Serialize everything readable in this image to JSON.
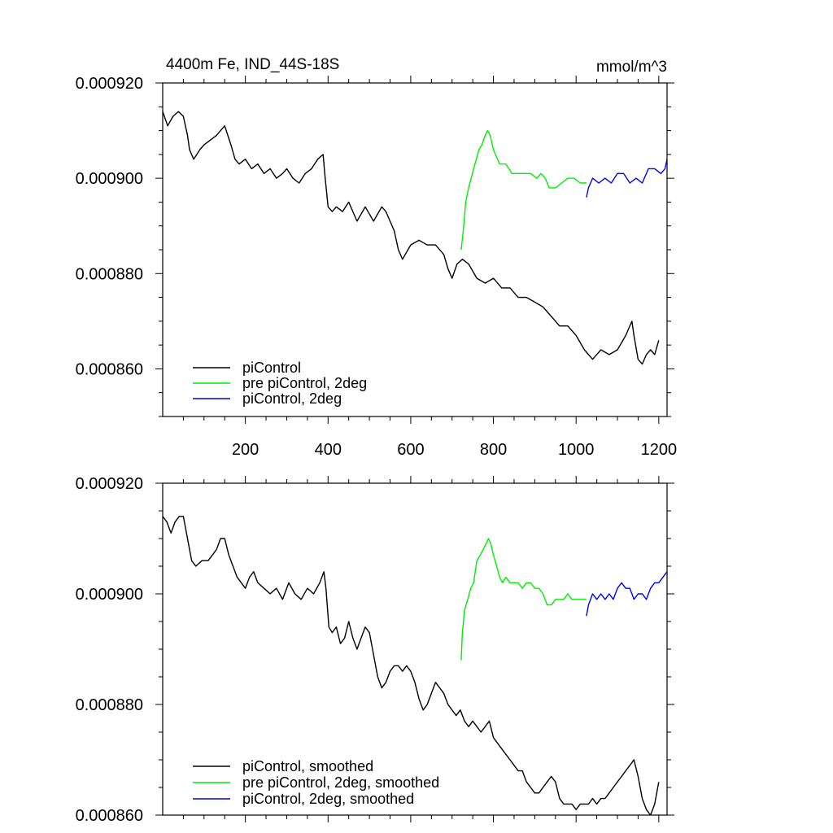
{
  "chart_data": [
    {
      "type": "line",
      "title": "4400m Fe, IND_44S-18S",
      "units": "mmol/m^3",
      "xlim": [
        0,
        1220
      ],
      "ylim": [
        0.00085,
        0.00092
      ],
      "x_tick_labels": [
        "200",
        "400",
        "600",
        "800",
        "1000",
        "1200"
      ],
      "y_tick_labels": [
        "0.000920",
        "0.000900",
        "0.000880",
        "0.000860"
      ],
      "legend_position": "bottom-left",
      "series": [
        {
          "name": "piControl",
          "color": "#000000",
          "x": [
            0,
            12,
            25,
            38,
            50,
            60,
            65,
            75,
            90,
            100,
            115,
            130,
            140,
            150,
            165,
            175,
            185,
            200,
            215,
            230,
            245,
            260,
            275,
            290,
            300,
            315,
            330,
            345,
            360,
            375,
            388,
            392,
            400,
            410,
            420,
            435,
            450,
            470,
            490,
            510,
            530,
            540,
            560,
            570,
            580,
            600,
            620,
            640,
            660,
            680,
            690,
            700,
            712,
            725,
            740,
            760,
            780,
            800,
            820,
            840,
            860,
            880,
            900,
            920,
            940,
            960,
            980,
            1000,
            1020,
            1040,
            1060,
            1080,
            1100,
            1120,
            1135,
            1140,
            1150,
            1160,
            1170,
            1180,
            1190,
            1200
          ],
          "values": [
            0.000914,
            0.000911,
            0.000913,
            0.000914,
            0.000913,
            0.000909,
            0.000906,
            0.000904,
            0.000906,
            0.000907,
            0.000908,
            0.000909,
            0.00091,
            0.000911,
            0.000907,
            0.000904,
            0.000903,
            0.000904,
            0.000902,
            0.000903,
            0.000901,
            0.000902,
            0.0009,
            0.000901,
            0.000902,
            0.0009,
            0.000899,
            0.000901,
            0.000902,
            0.000904,
            0.000905,
            0.000901,
            0.000894,
            0.000893,
            0.000894,
            0.000893,
            0.000895,
            0.000891,
            0.000894,
            0.000891,
            0.000894,
            0.000893,
            0.000889,
            0.000885,
            0.000883,
            0.000886,
            0.000887,
            0.000886,
            0.000886,
            0.000884,
            0.000881,
            0.000879,
            0.000882,
            0.000883,
            0.000882,
            0.000879,
            0.000878,
            0.000879,
            0.000877,
            0.000877,
            0.000875,
            0.000875,
            0.000874,
            0.000873,
            0.000871,
            0.000869,
            0.000869,
            0.000867,
            0.000864,
            0.000862,
            0.000864,
            0.000863,
            0.000864,
            0.000867,
            0.00087,
            0.000867,
            0.000862,
            0.000861,
            0.000863,
            0.000864,
            0.000863,
            0.000866
          ]
        },
        {
          "name": "pre piControl, 2deg",
          "color": "#00ee00",
          "x": [
            722,
            727,
            733,
            740,
            752,
            765,
            772,
            780,
            786,
            792,
            800,
            815,
            830,
            845,
            860,
            875,
            890,
            905,
            915,
            925,
            935,
            950,
            965,
            980,
            995,
            1010,
            1020,
            1025
          ],
          "values": [
            0.000885,
            0.000889,
            0.000895,
            0.000898,
            0.000902,
            0.000906,
            0.000907,
            0.000909,
            0.00091,
            0.000909,
            0.000906,
            0.000903,
            0.000903,
            0.000901,
            0.000901,
            0.000901,
            0.000901,
            0.0009,
            0.000901,
            0.0009,
            0.000898,
            0.000898,
            0.000899,
            0.0009,
            0.0009,
            0.000899,
            0.000899,
            0.000899
          ]
        },
        {
          "name": "piControl, 2deg",
          "color": "#0000ee",
          "x": [
            1025,
            1030,
            1040,
            1055,
            1070,
            1085,
            1100,
            1115,
            1130,
            1145,
            1160,
            1175,
            1190,
            1205,
            1215,
            1220
          ],
          "values": [
            0.000896,
            0.000898,
            0.0009,
            0.000899,
            0.0009,
            0.000899,
            0.000901,
            0.000901,
            0.000899,
            0.0009,
            0.000899,
            0.000902,
            0.000902,
            0.000901,
            0.000902,
            0.000904
          ]
        }
      ]
    },
    {
      "type": "line",
      "xlim": [
        0,
        1220
      ],
      "ylim": [
        0.00086,
        0.00092
      ],
      "y_tick_labels": [
        "0.000920",
        "0.000900",
        "0.000880",
        "0.000860"
      ],
      "legend_position": "bottom-left",
      "series": [
        {
          "name": "piControl, smoothed",
          "color": "#000000",
          "x": [
            0,
            10,
            20,
            30,
            40,
            50,
            60,
            70,
            80,
            95,
            110,
            120,
            130,
            140,
            150,
            160,
            170,
            180,
            190,
            200,
            210,
            220,
            230,
            245,
            260,
            275,
            290,
            305,
            320,
            335,
            350,
            365,
            380,
            390,
            395,
            402,
            410,
            420,
            430,
            440,
            450,
            460,
            470,
            480,
            490,
            500,
            510,
            520,
            530,
            540,
            550,
            560,
            570,
            580,
            590,
            600,
            610,
            620,
            630,
            640,
            650,
            660,
            670,
            680,
            690,
            700,
            710,
            720,
            730,
            740,
            750,
            760,
            770,
            780,
            790,
            800,
            810,
            820,
            830,
            840,
            850,
            860,
            870,
            880,
            890,
            900,
            910,
            920,
            930,
            940,
            950,
            960,
            970,
            980,
            990,
            1000,
            1010,
            1020,
            1030,
            1040,
            1050,
            1060,
            1070,
            1080,
            1090,
            1100,
            1110,
            1120,
            1130,
            1140,
            1150,
            1160,
            1170,
            1180,
            1190,
            1200
          ],
          "values": [
            0.000914,
            0.000913,
            0.000911,
            0.000913,
            0.000914,
            0.000914,
            0.00091,
            0.000906,
            0.000905,
            0.000906,
            0.000906,
            0.000907,
            0.000908,
            0.00091,
            0.00091,
            0.000907,
            0.000905,
            0.000903,
            0.000902,
            0.000901,
            0.000903,
            0.000904,
            0.000902,
            0.000901,
            0.0009,
            0.000901,
            0.000899,
            0.000902,
            0.0009,
            0.000899,
            0.000901,
            0.0009,
            0.000902,
            0.000904,
            0.000901,
            0.000894,
            0.000893,
            0.000894,
            0.000891,
            0.000892,
            0.000895,
            0.000892,
            0.00089,
            0.000892,
            0.000894,
            0.000893,
            0.000889,
            0.000885,
            0.000883,
            0.000884,
            0.000886,
            0.000887,
            0.000887,
            0.000886,
            0.000887,
            0.000886,
            0.000884,
            0.000881,
            0.000879,
            0.00088,
            0.000882,
            0.000884,
            0.000883,
            0.000882,
            0.00088,
            0.000879,
            0.000878,
            0.000879,
            0.000877,
            0.000876,
            0.000877,
            0.000876,
            0.000875,
            0.000876,
            0.000877,
            0.000874,
            0.000873,
            0.000872,
            0.000871,
            0.00087,
            0.000869,
            0.000868,
            0.000868,
            0.000866,
            0.000865,
            0.000864,
            0.000864,
            0.000865,
            0.000866,
            0.000867,
            0.000866,
            0.000863,
            0.000862,
            0.000862,
            0.000862,
            0.000861,
            0.000862,
            0.000862,
            0.000862,
            0.000863,
            0.000862,
            0.000863,
            0.000863,
            0.000864,
            0.000865,
            0.000866,
            0.000867,
            0.000868,
            0.000869,
            0.00087,
            0.000867,
            0.000863,
            0.000861,
            0.00086,
            0.000862,
            0.000866
          ]
        },
        {
          "name": "pre piControl, 2deg, smoothed",
          "color": "#00ee00",
          "x": [
            722,
            725,
            730,
            738,
            745,
            752,
            760,
            768,
            775,
            782,
            788,
            794,
            800,
            808,
            815,
            822,
            830,
            840,
            850,
            860,
            870,
            880,
            890,
            900,
            910,
            920,
            930,
            940,
            950,
            960,
            970,
            980,
            990,
            1000,
            1010,
            1020,
            1025
          ],
          "values": [
            0.000888,
            0.000893,
            0.000897,
            0.000899,
            0.000901,
            0.000902,
            0.000906,
            0.000907,
            0.000908,
            0.000909,
            0.00091,
            0.000909,
            0.000907,
            0.000905,
            0.000903,
            0.000902,
            0.000903,
            0.000902,
            0.000902,
            0.000902,
            0.000901,
            0.000902,
            0.000902,
            0.000901,
            0.000901,
            0.0009,
            0.000898,
            0.000898,
            0.000899,
            0.000899,
            0.000899,
            0.0009,
            0.000899,
            0.000899,
            0.000899,
            0.000899,
            0.000899
          ]
        },
        {
          "name": "piControl, 2deg, smoothed",
          "color": "#0000ee",
          "x": [
            1025,
            1030,
            1040,
            1050,
            1060,
            1070,
            1080,
            1090,
            1100,
            1110,
            1120,
            1130,
            1140,
            1150,
            1160,
            1170,
            1180,
            1190,
            1200,
            1210,
            1220
          ],
          "values": [
            0.000896,
            0.000898,
            0.0009,
            0.000899,
            0.0009,
            0.000899,
            0.0009,
            0.000899,
            0.000901,
            0.000902,
            0.000901,
            0.000901,
            0.000899,
            0.0009,
            0.0009,
            0.000899,
            0.000901,
            0.000902,
            0.000902,
            0.000903,
            0.000904
          ]
        }
      ]
    }
  ]
}
